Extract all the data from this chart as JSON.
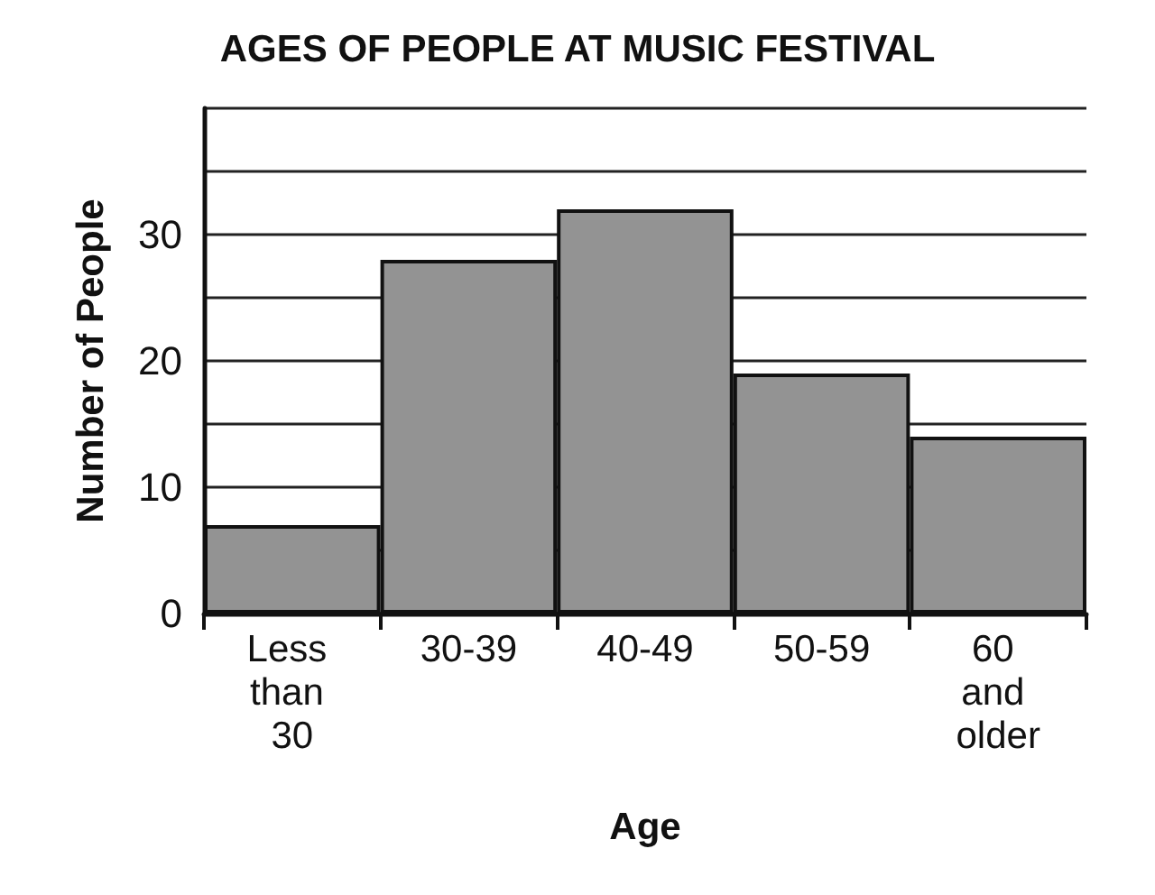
{
  "chart_data": {
    "type": "bar",
    "title": "AGES OF PEOPLE AT MUSIC FESTIVAL",
    "xlabel": "Age",
    "ylabel": "Number of People",
    "categories": [
      "Less than 30",
      "30-39",
      "40-49",
      "50-59",
      "60 and older"
    ],
    "values": [
      7,
      28,
      32,
      19,
      14
    ],
    "color": "#939393",
    "ylim": [
      0,
      40
    ],
    "yticks": [
      0,
      {
        "value": 5,
        "label": null
      },
      10,
      {
        "value": 15,
        "label": null
      },
      20,
      {
        "value": 25,
        "label": null
      },
      30,
      {
        "value": 35,
        "label": null
      },
      {
        "value": 40,
        "label": null
      }
    ],
    "grid": true
  }
}
